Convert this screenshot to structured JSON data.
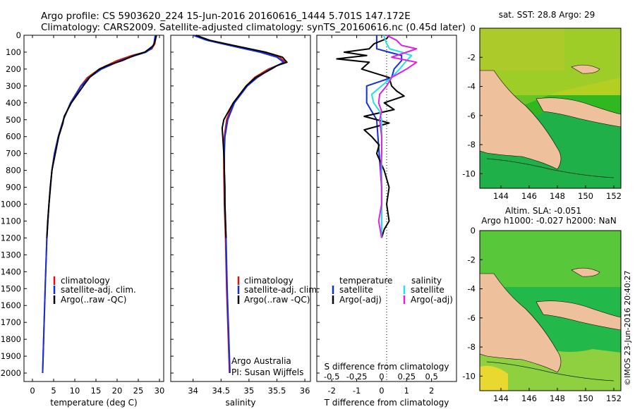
{
  "header": {
    "line1": "Argo profile: CS 5903620_224 15-Jun-2016 20160616_1444 5.701S 147.172E",
    "line2": "Climatology: CARS2009. Satellite-adjusted climatology: synTS_20160616.nc (0.45d later)"
  },
  "colors": {
    "clim": "#e01010",
    "sat": "#1030e0",
    "argo": "#000000",
    "sal_sat": "#20e0e8",
    "sal_argo": "#e020e0"
  },
  "depth_ticks": [
    "0",
    "100",
    "200",
    "300",
    "400",
    "500",
    "600",
    "700",
    "800",
    "900",
    "1000",
    "1100",
    "1200",
    "1300",
    "1400",
    "1500",
    "1600",
    "1700",
    "1800",
    "1900",
    "2000"
  ],
  "legend": {
    "clim": "climatology",
    "sat": "satellite-adj. clim.",
    "argo": "Argo(..raw -QC)"
  },
  "panel_diff_legend": {
    "temperature": "temperature",
    "salinity": "salinity",
    "satellite": "satellite",
    "argo": "Argo(-adj)"
  },
  "attribution": {
    "line1": "Argo Australia",
    "line2": "PI: Susan Wijffels"
  },
  "maps": {
    "top_title": "sat. SST: 28.8 Argo: 29",
    "bottom_title1": "Altim. SLA: -0.051",
    "bottom_title2": "Argo h1000: -0.027 h2000: NaN",
    "lat_ticks": [
      "0",
      "-2",
      "-4",
      "-6",
      "-8",
      "-10"
    ],
    "lon_ticks": [
      "144",
      "146",
      "148",
      "150",
      "152"
    ],
    "credit": "©IMOS 23-Jun-2016 20:40:27"
  },
  "chart_data": [
    {
      "type": "line",
      "title": "",
      "xlabel": "temperature (deg C)",
      "ylabel": "",
      "xlim": [
        -2,
        31
      ],
      "ylim": [
        2050,
        0
      ],
      "xticks": [
        "0",
        "5",
        "10",
        "15",
        "20",
        "25",
        "30"
      ],
      "series": [
        {
          "name": "climatology",
          "depth": [
            0,
            50,
            80,
            100,
            120,
            150,
            200,
            250,
            300,
            400,
            500,
            600,
            700,
            800,
            1000,
            1200,
            1500,
            2000
          ],
          "values": [
            29.2,
            28.9,
            28.2,
            26.5,
            23.5,
            20.0,
            15.8,
            13.0,
            11.4,
            9.0,
            7.3,
            6.1,
            5.2,
            4.6,
            3.9,
            3.4,
            3.0,
            2.4
          ]
        },
        {
          "name": "satellite-adj. clim.",
          "depth": [
            0,
            50,
            80,
            100,
            120,
            150,
            200,
            250,
            300,
            400,
            500,
            600,
            700,
            800,
            1000,
            1200,
            1500,
            2000
          ],
          "values": [
            29.0,
            28.7,
            28.0,
            26.8,
            24.3,
            20.8,
            16.3,
            13.4,
            11.5,
            9.0,
            7.3,
            6.1,
            5.2,
            4.6,
            3.9,
            3.4,
            3.0,
            2.4
          ]
        },
        {
          "name": "Argo(..raw -QC)",
          "depth": [
            0,
            30,
            60,
            80,
            100,
            120,
            150,
            180,
            200,
            250,
            300,
            400,
            480,
            520,
            600,
            700,
            800,
            900,
            1000,
            1100,
            1200
          ],
          "values": [
            29.3,
            29.0,
            28.6,
            27.6,
            26.5,
            24.0,
            21.2,
            17.6,
            15.8,
            13.5,
            12.0,
            9.2,
            7.5,
            7.2,
            6.2,
            5.4,
            4.6,
            4.2,
            3.9,
            3.6,
            3.4
          ]
        }
      ]
    },
    {
      "type": "line",
      "title": "",
      "xlabel": "salinity",
      "ylabel": "",
      "xlim": [
        33.6,
        36.1
      ],
      "ylim": [
        2050,
        0
      ],
      "xticks": [
        "34",
        "34.5",
        "35",
        "35.5",
        "36"
      ],
      "series": [
        {
          "name": "climatology",
          "depth": [
            0,
            30,
            60,
            100,
            130,
            160,
            200,
            250,
            300,
            400,
            500,
            600,
            700,
            800,
            1000,
            1200,
            1500,
            2000
          ],
          "values": [
            34.02,
            34.3,
            34.7,
            35.25,
            35.55,
            35.65,
            35.35,
            35.1,
            34.95,
            34.72,
            34.6,
            34.56,
            34.55,
            34.55,
            34.56,
            34.58,
            34.6,
            34.65
          ]
        },
        {
          "name": "satellite-adj. clim.",
          "depth": [
            0,
            30,
            60,
            100,
            130,
            160,
            200,
            250,
            300,
            400,
            500,
            600,
            700,
            800,
            1000,
            1200,
            1500,
            2000
          ],
          "values": [
            34.0,
            34.25,
            34.65,
            35.2,
            35.5,
            35.62,
            35.38,
            35.15,
            34.97,
            34.74,
            34.62,
            34.57,
            34.56,
            34.56,
            34.57,
            34.59,
            34.61,
            34.66
          ]
        },
        {
          "name": "Argo(..raw -QC)",
          "depth": [
            0,
            30,
            60,
            100,
            130,
            160,
            180,
            200,
            250,
            300,
            400,
            500,
            550,
            600,
            700,
            800,
            900,
            1000,
            1100,
            1200
          ],
          "values": [
            34.05,
            34.3,
            34.72,
            35.3,
            35.6,
            35.68,
            35.5,
            35.4,
            35.12,
            34.95,
            34.72,
            34.55,
            34.52,
            34.53,
            34.55,
            34.56,
            34.57,
            34.57,
            34.58,
            34.59
          ]
        }
      ]
    },
    {
      "type": "line",
      "title": "",
      "xlabel": "T difference from climatology",
      "xlabel_top": "S difference from climatology",
      "xlim": [
        -2.6,
        3.0
      ],
      "ylim": [
        2050,
        0
      ],
      "xticks": [
        "-2",
        "-1",
        "0",
        "1",
        "2"
      ],
      "xticks_top": [
        "-0.5",
        "-0.25",
        "0",
        "0.25",
        "0.5"
      ],
      "series": [
        {
          "name": "temperature satellite",
          "depth": [
            0,
            50,
            80,
            100,
            120,
            150,
            200,
            250,
            300,
            400,
            500,
            700,
            900,
            1200
          ],
          "values": [
            -0.2,
            -0.2,
            -0.2,
            0.3,
            0.8,
            0.8,
            0.5,
            0.4,
            -0.6,
            -0.6,
            -0.2,
            -0.1,
            0.0,
            0.0
          ]
        },
        {
          "name": "temperature Argo(-adj)",
          "depth": [
            0,
            20,
            50,
            80,
            100,
            120,
            140,
            160,
            200,
            250,
            300,
            330,
            360,
            400,
            440,
            480,
            520,
            560,
            600,
            650,
            700,
            800,
            900,
            1000,
            1100,
            1150,
            1200
          ],
          "values": [
            0.3,
            0.2,
            -0.3,
            -0.5,
            -1.5,
            -0.6,
            -1.8,
            -0.5,
            -0.8,
            0.3,
            0.4,
            0.6,
            0.9,
            0.1,
            0.5,
            -0.7,
            0.3,
            -0.7,
            -0.4,
            -0.1,
            -0.2,
            0.1,
            0.3,
            0.2,
            0.3,
            0.1,
            0.0
          ]
        },
        {
          "name": "salinity satellite",
          "depth": [
            0,
            50,
            80,
            100,
            120,
            150,
            200,
            250,
            300,
            350,
            400,
            450,
            500,
            700,
            900,
            1200
          ],
          "values": [
            0.02,
            0.05,
            0.08,
            0.2,
            0.3,
            0.25,
            0.18,
            0.1,
            0.0,
            -0.1,
            -0.08,
            -0.02,
            0.0,
            0.0,
            0.0,
            0.0
          ]
        },
        {
          "name": "salinity Argo(-adj)",
          "depth": [
            0,
            30,
            60,
            80,
            100,
            130,
            160,
            200,
            250,
            300,
            350,
            400,
            450,
            500,
            600,
            700,
            800,
            900,
            1000,
            1100,
            1200
          ],
          "values": [
            0.05,
            0.15,
            0.2,
            0.35,
            0.25,
            0.1,
            0.35,
            0.25,
            0.1,
            0.05,
            -0.02,
            -0.03,
            0.0,
            -0.02,
            0.0,
            0.0,
            -0.01,
            0.0,
            0.0,
            -0.03,
            0.0
          ]
        }
      ]
    }
  ]
}
